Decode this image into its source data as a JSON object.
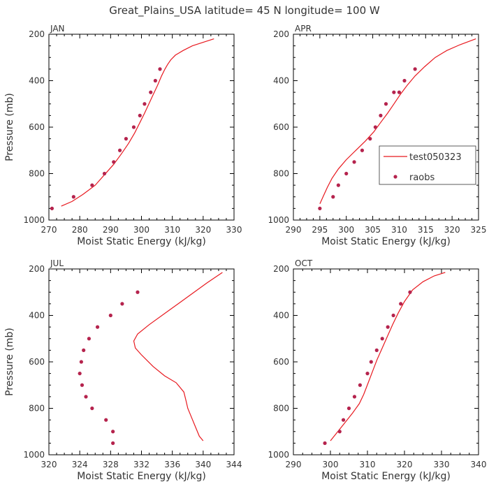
{
  "chart_data": {
    "type": "line",
    "title": "Great_Plains_USA   latitude= 45 N longitude= 100 W",
    "colors": {
      "model": "#e8191f",
      "obs": "#b5234d"
    },
    "legend": {
      "model_label": "test050323",
      "obs_label": "raobs",
      "placement": "APR panel, middle-right"
    },
    "panels": [
      {
        "id": "jan",
        "title": "JAN",
        "xlabel": "Moist Static Energy (kJ/kg)",
        "ylabel": "Pressure (mb)",
        "xlim": [
          270,
          330
        ],
        "ylim": [
          200,
          1000
        ],
        "xticks": [
          270,
          280,
          290,
          300,
          310,
          320,
          330
        ],
        "yticks": [
          200,
          400,
          600,
          800,
          1000
        ],
        "model": {
          "x": [
            274,
            277.5,
            281,
            285,
            288,
            291,
            293.5,
            295.8,
            297.8,
            299.5,
            301,
            302.4,
            303.8,
            305.2,
            306.5,
            307.6,
            308.5,
            309.5,
            311,
            313.5,
            316.5,
            320,
            323.5
          ],
          "y": [
            940,
            920,
            890,
            850,
            805,
            760,
            715,
            670,
            625,
            580,
            540,
            500,
            460,
            420,
            380,
            350,
            330,
            310,
            290,
            270,
            250,
            235,
            220
          ]
        },
        "obs": {
          "x": [
            271,
            278,
            284,
            288,
            291,
            293,
            295,
            297.5,
            299.5,
            301,
            303,
            304.5,
            306
          ],
          "y": [
            950,
            900,
            850,
            800,
            750,
            700,
            650,
            600,
            550,
            500,
            450,
            400,
            350
          ]
        }
      },
      {
        "id": "apr",
        "title": "APR",
        "xlabel": "Moist Static Energy (kJ/kg)",
        "ylabel": "",
        "xlim": [
          290,
          325
        ],
        "ylim": [
          200,
          1000
        ],
        "xticks": [
          290,
          295,
          300,
          305,
          310,
          315,
          320,
          325
        ],
        "yticks": [
          200,
          400,
          600,
          800,
          1000
        ],
        "model": {
          "x": [
            295,
            295.6,
            296.4,
            297.3,
            298.5,
            300,
            301.8,
            303.6,
            305.2,
            306.5,
            307.8,
            309,
            310.2,
            311.5,
            313,
            314.8,
            316.8,
            319,
            321.5,
            324.5
          ],
          "y": [
            930,
            900,
            860,
            820,
            780,
            740,
            700,
            660,
            620,
            580,
            540,
            500,
            460,
            420,
            380,
            340,
            300,
            270,
            245,
            220
          ]
        },
        "obs": {
          "x": [
            295,
            297.5,
            298.5,
            300,
            301.5,
            303,
            304.5,
            305.5,
            306.5,
            307.5,
            309,
            310,
            311,
            313
          ],
          "y": [
            950,
            900,
            850,
            800,
            750,
            700,
            650,
            600,
            550,
            500,
            450,
            450,
            400,
            350
          ]
        }
      },
      {
        "id": "jul",
        "title": "JUL",
        "xlabel": "Moist Static Energy (kJ/kg)",
        "ylabel": "Pressure (mb)",
        "xlim": [
          320,
          344
        ],
        "ylim": [
          200,
          1000
        ],
        "xticks": [
          320,
          324,
          328,
          332,
          336,
          340,
          344
        ],
        "yticks": [
          200,
          400,
          600,
          800,
          1000
        ],
        "model": {
          "x": [
            340,
            339.5,
            339,
            338.5,
            338,
            337.8,
            337.5,
            336.5,
            335,
            333.5,
            332,
            331.2,
            331,
            331.5,
            333,
            335.5,
            338,
            340.5,
            342.5
          ],
          "y": [
            940,
            920,
            880,
            840,
            800,
            770,
            730,
            690,
            660,
            620,
            570,
            540,
            510,
            480,
            440,
            380,
            320,
            260,
            215
          ]
        },
        "obs": {
          "x": [
            328.3,
            328.3,
            327.4,
            325.6,
            324.8,
            324.3,
            324,
            324.2,
            324.5,
            325.2,
            326.3,
            328,
            329.5,
            331.5
          ],
          "y": [
            950,
            900,
            850,
            800,
            750,
            700,
            650,
            600,
            550,
            500,
            450,
            400,
            350,
            300
          ]
        }
      },
      {
        "id": "oct",
        "title": "OCT",
        "xlabel": "Moist Static Energy (kJ/kg)",
        "ylabel": "",
        "xlim": [
          290,
          340
        ],
        "ylim": [
          200,
          1000
        ],
        "xticks": [
          290,
          300,
          310,
          320,
          330,
          340
        ],
        "yticks": [
          200,
          400,
          600,
          800,
          1000
        ],
        "model": {
          "x": [
            300,
            302,
            304,
            306,
            307.8,
            309,
            310.2,
            311.4,
            312.6,
            314,
            315.4,
            316.8,
            318.3,
            320,
            322.2,
            325,
            328,
            331
          ],
          "y": [
            940,
            900,
            860,
            820,
            780,
            740,
            690,
            640,
            590,
            540,
            490,
            440,
            390,
            340,
            290,
            255,
            230,
            215
          ]
        },
        "obs": {
          "x": [
            298.5,
            302.5,
            303.5,
            305,
            306.5,
            308,
            310,
            311,
            312.5,
            314,
            315.5,
            317,
            319,
            321.5
          ],
          "y": [
            950,
            900,
            850,
            800,
            750,
            700,
            650,
            600,
            550,
            500,
            450,
            400,
            350,
            300
          ]
        }
      }
    ]
  }
}
